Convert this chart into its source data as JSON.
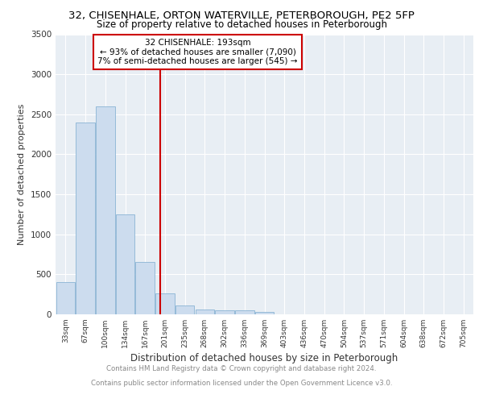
{
  "title": "32, CHISENHALE, ORTON WATERVILLE, PETERBOROUGH, PE2 5FP",
  "subtitle": "Size of property relative to detached houses in Peterborough",
  "xlabel": "Distribution of detached houses by size in Peterborough",
  "ylabel": "Number of detached properties",
  "categories": [
    "33sqm",
    "67sqm",
    "100sqm",
    "134sqm",
    "167sqm",
    "201sqm",
    "235sqm",
    "268sqm",
    "302sqm",
    "336sqm",
    "369sqm",
    "403sqm",
    "436sqm",
    "470sqm",
    "504sqm",
    "537sqm",
    "571sqm",
    "604sqm",
    "638sqm",
    "672sqm",
    "705sqm"
  ],
  "values": [
    400,
    2400,
    2600,
    1250,
    650,
    260,
    110,
    60,
    50,
    50,
    30,
    0,
    0,
    0,
    0,
    0,
    0,
    0,
    0,
    0,
    0
  ],
  "bar_color": "#ccdcee",
  "bar_edge_color": "#8ab4d4",
  "vline_color": "#cc0000",
  "annotation_title": "32 CHISENHALE: 193sqm",
  "annotation_line1": "← 93% of detached houses are smaller (7,090)",
  "annotation_line2": "7% of semi-detached houses are larger (545) →",
  "annotation_box_color": "#cc0000",
  "ylim": [
    0,
    3500
  ],
  "yticks": [
    0,
    500,
    1000,
    1500,
    2000,
    2500,
    3000,
    3500
  ],
  "footer_line1": "Contains HM Land Registry data © Crown copyright and database right 2024.",
  "footer_line2": "Contains public sector information licensed under the Open Government Licence v3.0.",
  "plot_bg_color": "#e8eef4"
}
